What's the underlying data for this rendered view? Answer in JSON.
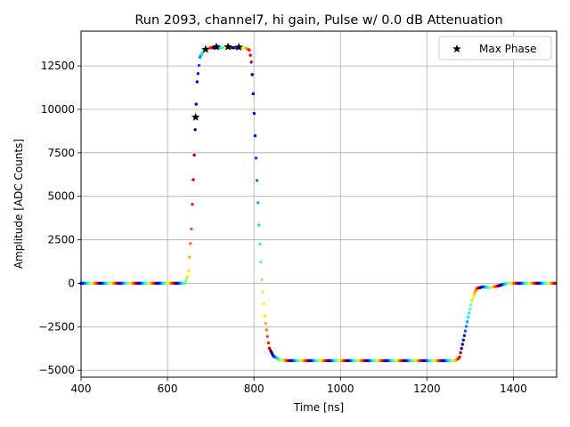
{
  "chart_data": {
    "type": "scatter",
    "title": "Run 2093, channel7, hi gain, Pulse w/ 0.0 dB Attenuation",
    "xlabel": "Time [ns]",
    "ylabel": "Amplitude [ADC Counts]",
    "xlim": [
      400,
      1500
    ],
    "ylim": [
      -5400,
      14500
    ],
    "xticks": [
      400,
      600,
      800,
      1000,
      1200,
      1400
    ],
    "yticks": [
      -5000,
      -2500,
      0,
      2500,
      5000,
      7500,
      10000,
      12500
    ],
    "grid": true,
    "legend": {
      "position": "top-right",
      "entries": [
        "Max Phase"
      ]
    },
    "colormap": "jet",
    "waveform": {
      "description_points": [
        [
          400,
          0
        ],
        [
          640,
          0
        ],
        [
          648,
          500
        ],
        [
          655,
          3000
        ],
        [
          662,
          7500
        ],
        [
          668,
          11500
        ],
        [
          675,
          13000
        ],
        [
          685,
          13450
        ],
        [
          700,
          13550
        ],
        [
          780,
          13550
        ],
        [
          790,
          13400
        ],
        [
          795,
          12500
        ],
        [
          800,
          10000
        ],
        [
          806,
          6500
        ],
        [
          812,
          3000
        ],
        [
          818,
          200
        ],
        [
          825,
          -2000
        ],
        [
          835,
          -3700
        ],
        [
          845,
          -4200
        ],
        [
          860,
          -4400
        ],
        [
          880,
          -4450
        ],
        [
          1265,
          -4450
        ],
        [
          1275,
          -4300
        ],
        [
          1285,
          -3200
        ],
        [
          1295,
          -2000
        ],
        [
          1305,
          -900
        ],
        [
          1315,
          -300
        ],
        [
          1330,
          -200
        ],
        [
          1345,
          -250
        ],
        [
          1365,
          -150
        ],
        [
          1385,
          0
        ],
        [
          1500,
          0
        ]
      ]
    },
    "series": [
      {
        "name": "Max Phase",
        "marker": "star",
        "color": "#000000",
        "points": [
          [
            665,
            9550
          ],
          [
            688,
            13450
          ],
          [
            713,
            13600
          ],
          [
            740,
            13600
          ],
          [
            765,
            13580
          ]
        ]
      }
    ]
  }
}
